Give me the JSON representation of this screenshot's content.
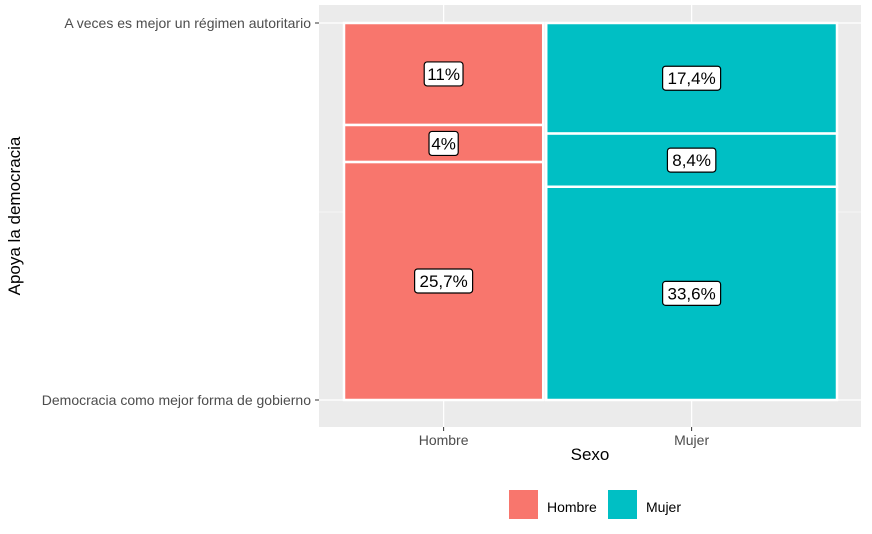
{
  "chart_data": {
    "type": "mosaic",
    "title": "",
    "xlabel": "Sexo",
    "ylabel": "Apoya la democracia",
    "x_categories": [
      "Hombre",
      "Mujer"
    ],
    "y_tick_labels": [
      "Democracia como mejor forma de gobierno",
      "A veces es mejor un régimen autoritario"
    ],
    "legend": {
      "position": "bottom",
      "entries": [
        {
          "name": "Hombre",
          "color": "#F8766D"
        },
        {
          "name": "Mujer",
          "color": "#00BFC4"
        }
      ]
    },
    "columns": [
      {
        "category": "Hombre",
        "color": "#F8766D",
        "segments": [
          {
            "label": "25,7%",
            "value": 25.7
          },
          {
            "label": "4%",
            "value": 4.0
          },
          {
            "label": "11%",
            "value": 11.0
          }
        ]
      },
      {
        "category": "Mujer",
        "color": "#00BFC4",
        "segments": [
          {
            "label": "33,6%",
            "value": 33.6
          },
          {
            "label": "8,4%",
            "value": 8.4
          },
          {
            "label": "17,4%",
            "value": 17.4
          }
        ]
      }
    ],
    "grid": true,
    "panel_background": "#EBEBEB"
  }
}
